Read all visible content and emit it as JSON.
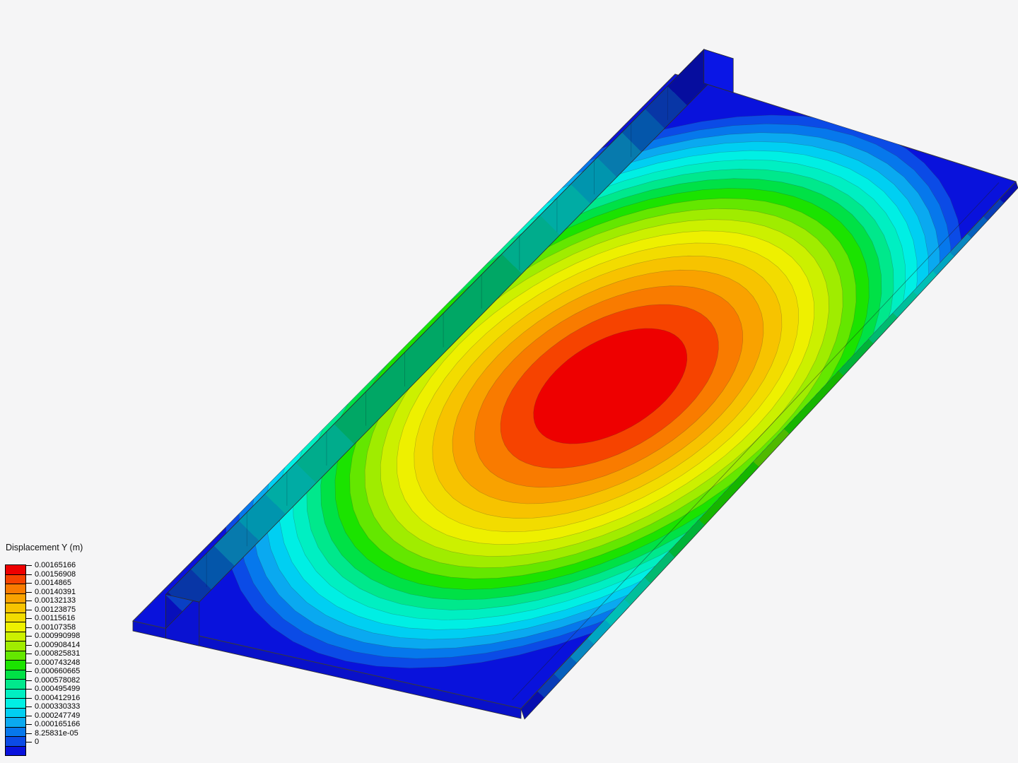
{
  "app": {
    "view_description": "FEA post-processing viewport showing Y-displacement contours on a ribbed plate",
    "background_color": "#f5f5f6"
  },
  "legend": {
    "title": "Displacement Y (m)",
    "values_top_to_bottom": [
      "0.00165166",
      "0.00156908",
      "0.0014865",
      "0.00140391",
      "0.00132133",
      "0.00123875",
      "0.00115616",
      "0.00107358",
      "0.000990998",
      "0.000908414",
      "0.000825831",
      "0.000743248",
      "0.000660665",
      "0.000578082",
      "0.000495499",
      "0.000412916",
      "0.000330333",
      "0.000247749",
      "0.000165166",
      "8.25831e-05",
      "0"
    ],
    "band_colors_top_to_bottom": [
      "#EE0000",
      "#F64300",
      "#F97B00",
      "#F9A200",
      "#F7C300",
      "#F2DC00",
      "#EEF000",
      "#CCF000",
      "#A0EC00",
      "#64E700",
      "#1BE300",
      "#00E146",
      "#00E88C",
      "#00EFC2",
      "#00EFE4",
      "#00CFF2",
      "#0AA9F0",
      "#0678EC",
      "#0B4BE6",
      "#0912DC"
    ]
  },
  "result": {
    "field": "Displacement Y",
    "unit": "m",
    "max_value": "0.00165166",
    "min_value": "0"
  },
  "scene": {
    "outline_color": "#3a3a3a",
    "bottom_face_color": "#0911C9",
    "near_cap_color": "#0A12D2",
    "far_cap_color": "#0A16E6"
  }
}
